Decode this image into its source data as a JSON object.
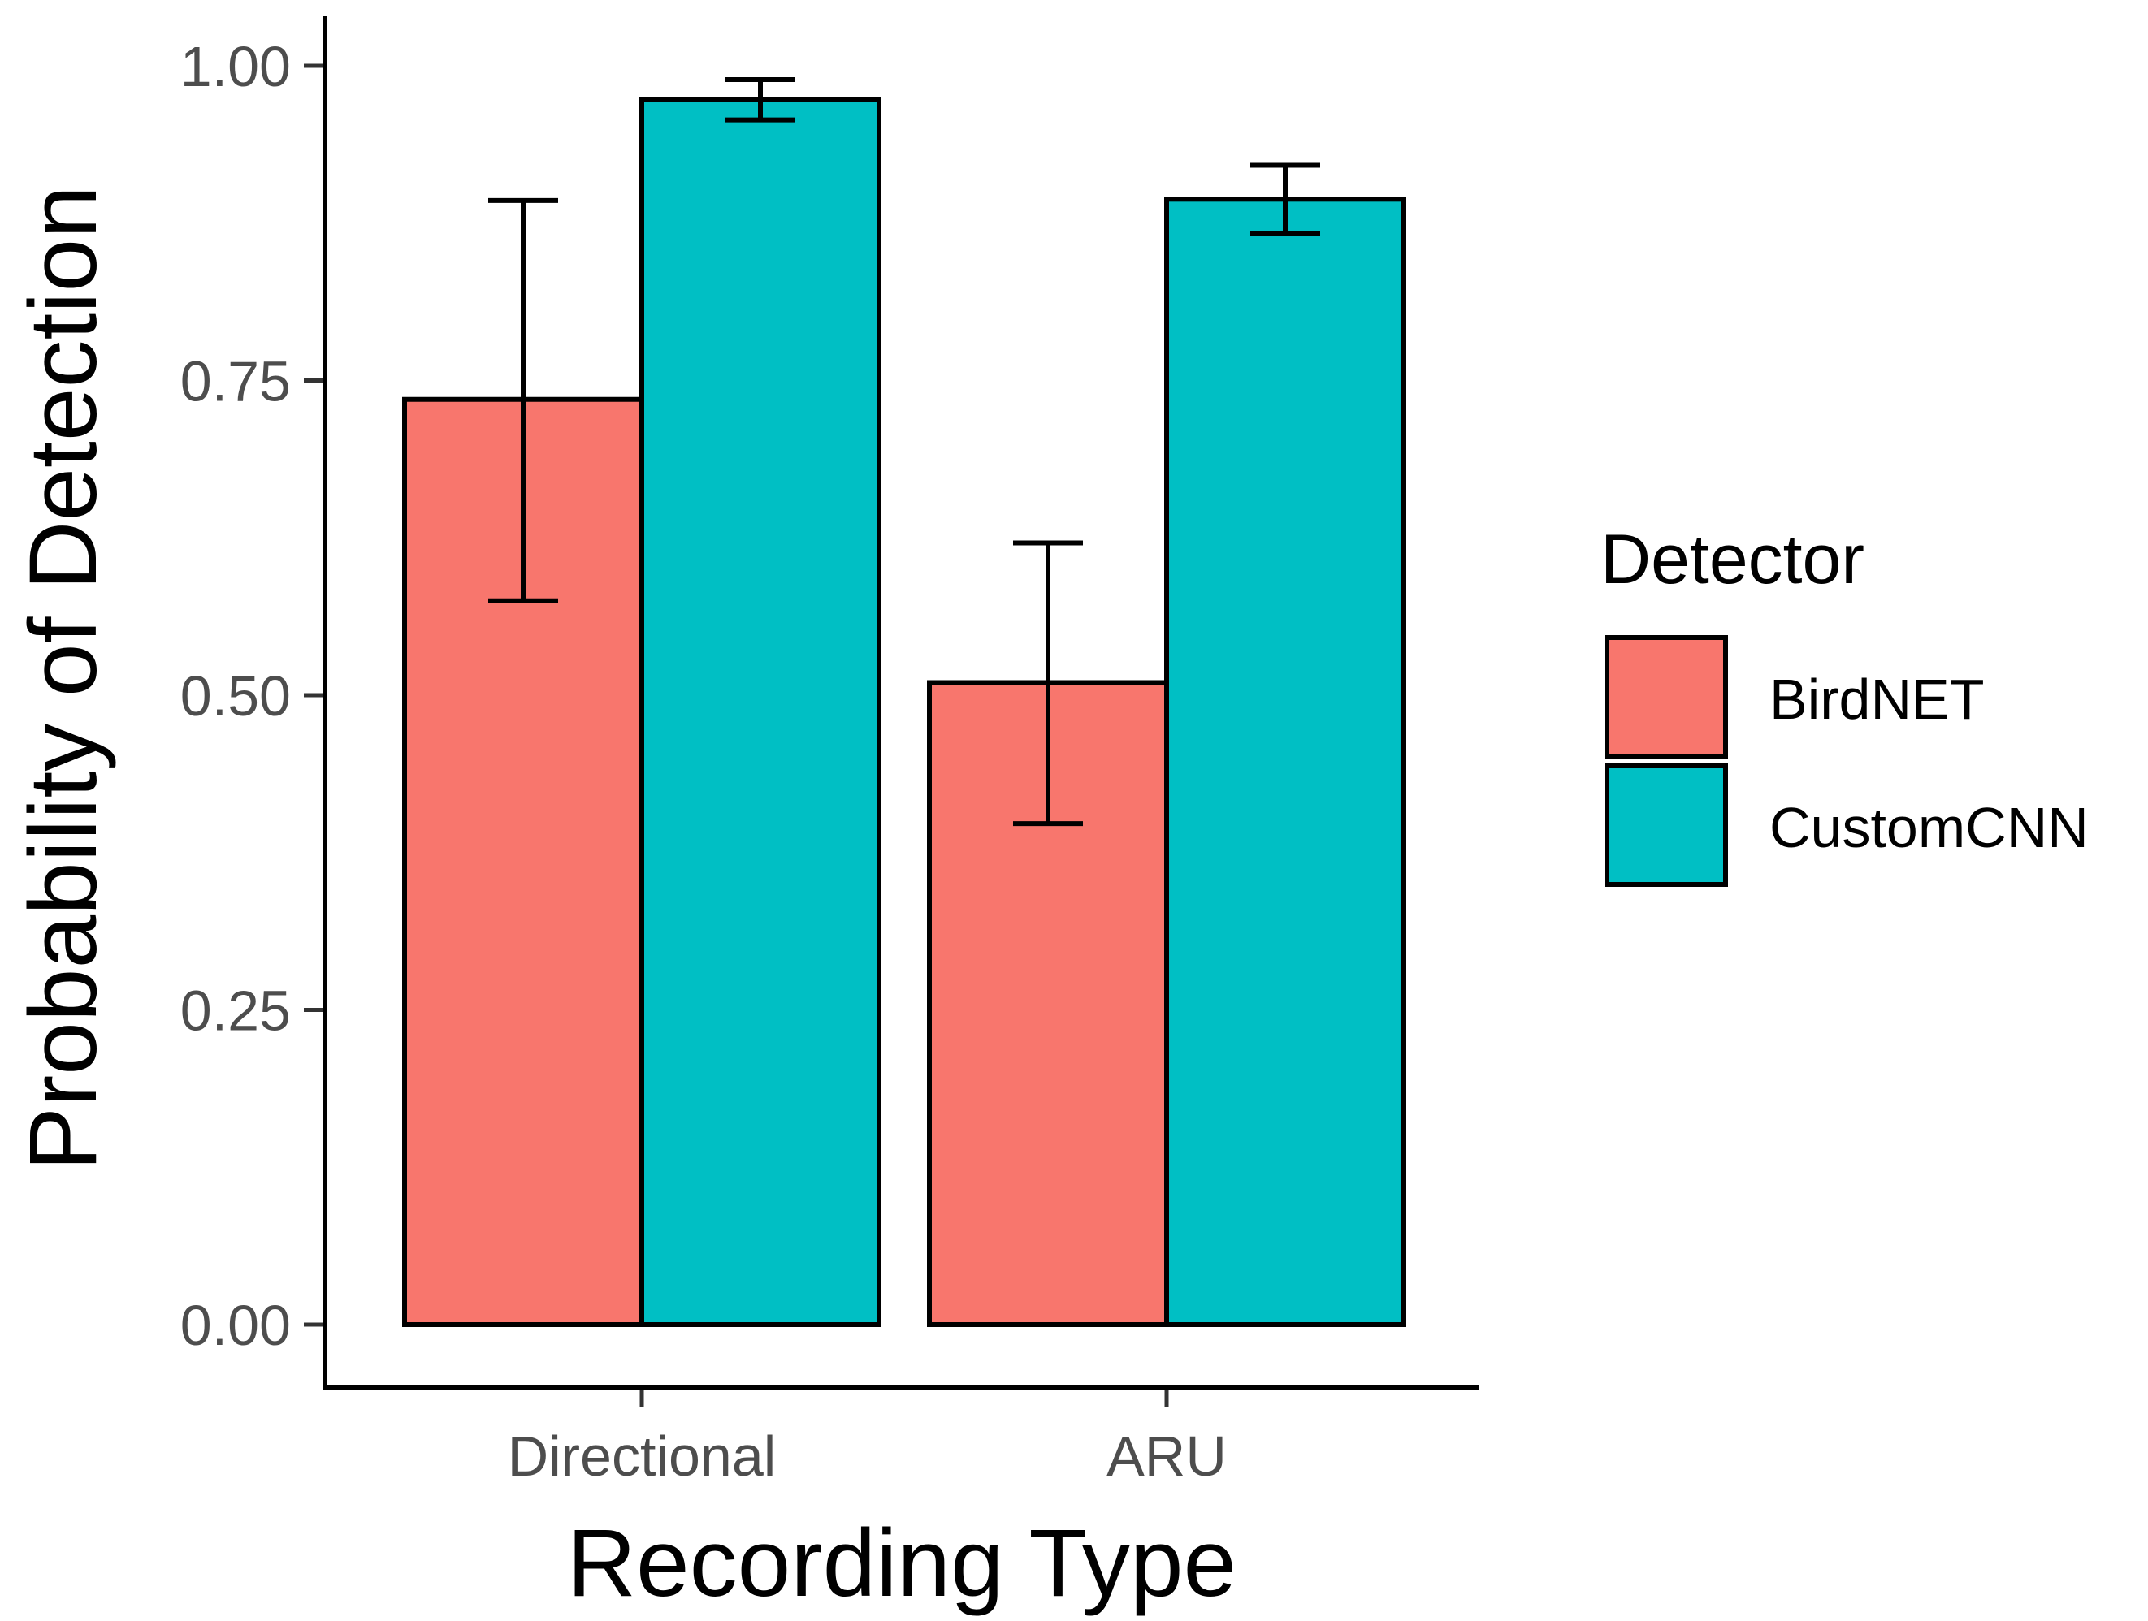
{
  "chart_data": {
    "type": "bar",
    "title": "",
    "xlabel": "Recording Type",
    "ylabel": "Probability of Detection",
    "categories": [
      "Directional",
      "ARU"
    ],
    "ylim": [
      0,
      1.0
    ],
    "yticks": [
      0.0,
      0.25,
      0.5,
      0.75,
      1.0
    ],
    "ytick_labels": [
      "0.00",
      "0.25",
      "0.50",
      "0.75",
      "1.00"
    ],
    "grid": false,
    "legend": {
      "title": "Detector",
      "position": "right",
      "entries": [
        "BirdNET",
        "CustomCNN"
      ]
    },
    "series": [
      {
        "name": "BirdNET",
        "color": "#f8766d",
        "values": [
          0.735,
          0.51
        ],
        "error_lower": [
          0.575,
          0.398
        ],
        "error_upper": [
          0.893,
          0.621
        ]
      },
      {
        "name": "CustomCNN",
        "color": "#00bfc4",
        "values": [
          0.973,
          0.894
        ],
        "error_lower": [
          0.957,
          0.867
        ],
        "error_upper": [
          0.989,
          0.921
        ]
      }
    ]
  }
}
